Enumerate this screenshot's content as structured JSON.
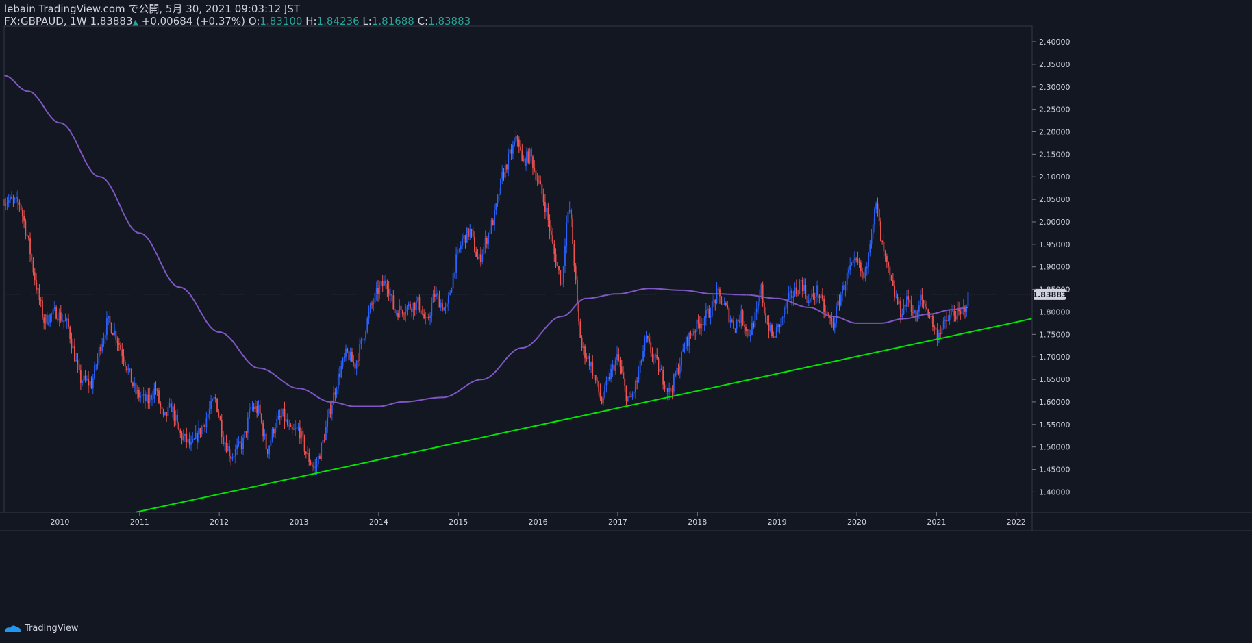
{
  "header": {
    "published_line": "lebain TradingView.com で公開, 5月 30, 2021 09:03:12 JST",
    "symbol": "FX:GBPAUD, 1W",
    "last": "1.83883",
    "change": "+0.00684 (+0.37%)",
    "o_label": "O:",
    "o_value": "1.83100",
    "h_label": "H:",
    "h_value": "1.84236",
    "l_label": "L:",
    "l_value": "1.81688",
    "c_label": "C:",
    "c_value": "1.83883"
  },
  "footer": {
    "brand": "TradingView"
  },
  "colors": {
    "background": "#131722",
    "up": "#2962ff",
    "down": "#ef5350",
    "ma": "#7e57c2",
    "trendline": "#00e600",
    "axis_text": "#d1d4dc",
    "price_tag_bg": "#d1d4dc"
  },
  "chart_data": {
    "type": "candlestick",
    "timeframe": "1W",
    "ylim": [
      1.355,
      2.435
    ],
    "xlim": [
      2009.3,
      2022.2
    ],
    "y_ticks": [
      "1.40000",
      "1.45000",
      "1.50000",
      "1.55000",
      "1.60000",
      "1.65000",
      "1.70000",
      "1.75000",
      "1.80000",
      "1.85000",
      "1.90000",
      "1.95000",
      "2.00000",
      "2.05000",
      "2.10000",
      "2.15000",
      "2.20000",
      "2.25000",
      "2.30000",
      "2.35000",
      "2.40000"
    ],
    "x_ticks": [
      "2010",
      "2011",
      "2012",
      "2013",
      "2014",
      "2015",
      "2016",
      "2017",
      "2018",
      "2019",
      "2020",
      "2021",
      "2022"
    ],
    "current_price": 1.83883,
    "current_price_label": "1.83883",
    "price_path": [
      [
        2009.3,
        2.05
      ],
      [
        2009.5,
        2.04
      ],
      [
        2009.6,
        1.96
      ],
      [
        2009.7,
        1.86
      ],
      [
        2009.8,
        1.78
      ],
      [
        2009.95,
        1.8
      ],
      [
        2010.1,
        1.77
      ],
      [
        2010.25,
        1.65
      ],
      [
        2010.4,
        1.64
      ],
      [
        2010.5,
        1.72
      ],
      [
        2010.6,
        1.78
      ],
      [
        2010.7,
        1.75
      ],
      [
        2010.8,
        1.7
      ],
      [
        2010.95,
        1.62
      ],
      [
        2011.1,
        1.6
      ],
      [
        2011.2,
        1.63
      ],
      [
        2011.3,
        1.56
      ],
      [
        2011.4,
        1.59
      ],
      [
        2011.5,
        1.53
      ],
      [
        2011.65,
        1.5
      ],
      [
        2011.8,
        1.55
      ],
      [
        2011.95,
        1.61
      ],
      [
        2012.05,
        1.52
      ],
      [
        2012.15,
        1.48
      ],
      [
        2012.3,
        1.51
      ],
      [
        2012.4,
        1.59
      ],
      [
        2012.5,
        1.58
      ],
      [
        2012.6,
        1.49
      ],
      [
        2012.7,
        1.55
      ],
      [
        2012.8,
        1.57
      ],
      [
        2012.9,
        1.53
      ],
      [
        2013.0,
        1.54
      ],
      [
        2013.1,
        1.48
      ],
      [
        2013.2,
        1.45
      ],
      [
        2013.3,
        1.51
      ],
      [
        2013.4,
        1.59
      ],
      [
        2013.5,
        1.66
      ],
      [
        2013.6,
        1.71
      ],
      [
        2013.7,
        1.68
      ],
      [
        2013.8,
        1.74
      ],
      [
        2013.9,
        1.81
      ],
      [
        2014.0,
        1.85
      ],
      [
        2014.1,
        1.87
      ],
      [
        2014.2,
        1.8
      ],
      [
        2014.35,
        1.81
      ],
      [
        2014.5,
        1.82
      ],
      [
        2014.6,
        1.77
      ],
      [
        2014.7,
        1.84
      ],
      [
        2014.85,
        1.8
      ],
      [
        2014.95,
        1.9
      ],
      [
        2015.05,
        1.96
      ],
      [
        2015.15,
        1.98
      ],
      [
        2015.25,
        1.91
      ],
      [
        2015.35,
        1.96
      ],
      [
        2015.45,
        2.01
      ],
      [
        2015.55,
        2.1
      ],
      [
        2015.65,
        2.15
      ],
      [
        2015.75,
        2.19
      ],
      [
        2015.8,
        2.13
      ],
      [
        2015.9,
        2.15
      ],
      [
        2016.0,
        2.09
      ],
      [
        2016.1,
        2.03
      ],
      [
        2016.2,
        1.93
      ],
      [
        2016.3,
        1.86
      ],
      [
        2016.35,
        1.99
      ],
      [
        2016.4,
        2.03
      ],
      [
        2016.45,
        1.92
      ],
      [
        2016.5,
        1.79
      ],
      [
        2016.55,
        1.72
      ],
      [
        2016.65,
        1.69
      ],
      [
        2016.75,
        1.63
      ],
      [
        2016.8,
        1.6
      ],
      [
        2016.9,
        1.66
      ],
      [
        2017.0,
        1.7
      ],
      [
        2017.1,
        1.62
      ],
      [
        2017.15,
        1.6
      ],
      [
        2017.25,
        1.65
      ],
      [
        2017.35,
        1.74
      ],
      [
        2017.45,
        1.7
      ],
      [
        2017.55,
        1.66
      ],
      [
        2017.65,
        1.62
      ],
      [
        2017.75,
        1.67
      ],
      [
        2017.85,
        1.73
      ],
      [
        2017.95,
        1.76
      ],
      [
        2018.05,
        1.78
      ],
      [
        2018.15,
        1.8
      ],
      [
        2018.25,
        1.84
      ],
      [
        2018.35,
        1.81
      ],
      [
        2018.45,
        1.77
      ],
      [
        2018.55,
        1.79
      ],
      [
        2018.65,
        1.75
      ],
      [
        2018.75,
        1.8
      ],
      [
        2018.8,
        1.85
      ],
      [
        2018.85,
        1.79
      ],
      [
        2018.95,
        1.74
      ],
      [
        2019.05,
        1.78
      ],
      [
        2019.15,
        1.83
      ],
      [
        2019.25,
        1.85
      ],
      [
        2019.3,
        1.87
      ],
      [
        2019.4,
        1.82
      ],
      [
        2019.5,
        1.85
      ],
      [
        2019.6,
        1.8
      ],
      [
        2019.7,
        1.77
      ],
      [
        2019.8,
        1.84
      ],
      [
        2019.9,
        1.89
      ],
      [
        2020.0,
        1.91
      ],
      [
        2020.1,
        1.87
      ],
      [
        2020.15,
        1.95
      ],
      [
        2020.2,
        2.0
      ],
      [
        2020.25,
        2.04
      ],
      [
        2020.3,
        1.96
      ],
      [
        2020.35,
        1.92
      ],
      [
        2020.45,
        1.85
      ],
      [
        2020.55,
        1.8
      ],
      [
        2020.65,
        1.83
      ],
      [
        2020.75,
        1.78
      ],
      [
        2020.8,
        1.83
      ],
      [
        2020.9,
        1.8
      ],
      [
        2021.0,
        1.75
      ],
      [
        2021.1,
        1.77
      ],
      [
        2021.2,
        1.8
      ],
      [
        2021.3,
        1.79
      ],
      [
        2021.35,
        1.81
      ],
      [
        2021.41,
        1.83883
      ]
    ],
    "moving_average": [
      [
        2009.3,
        2.325
      ],
      [
        2009.6,
        2.29
      ],
      [
        2010.0,
        2.22
      ],
      [
        2010.5,
        2.1
      ],
      [
        2011.0,
        1.975
      ],
      [
        2011.5,
        1.855
      ],
      [
        2012.0,
        1.755
      ],
      [
        2012.5,
        1.675
      ],
      [
        2013.0,
        1.63
      ],
      [
        2013.4,
        1.6
      ],
      [
        2013.7,
        1.59
      ],
      [
        2014.0,
        1.59
      ],
      [
        2014.3,
        1.6
      ],
      [
        2014.8,
        1.61
      ],
      [
        2015.3,
        1.65
      ],
      [
        2015.8,
        1.72
      ],
      [
        2016.3,
        1.79
      ],
      [
        2016.6,
        1.83
      ],
      [
        2017.0,
        1.84
      ],
      [
        2017.4,
        1.852
      ],
      [
        2017.8,
        1.848
      ],
      [
        2018.2,
        1.84
      ],
      [
        2018.6,
        1.838
      ],
      [
        2019.0,
        1.83
      ],
      [
        2019.4,
        1.81
      ],
      [
        2019.7,
        1.79
      ],
      [
        2020.0,
        1.775
      ],
      [
        2020.3,
        1.775
      ],
      [
        2020.6,
        1.785
      ],
      [
        2020.9,
        1.795
      ],
      [
        2021.2,
        1.805
      ],
      [
        2021.41,
        1.81
      ]
    ],
    "trendline": {
      "from": [
        2010.95,
        1.355
      ],
      "to": [
        2022.2,
        1.785
      ]
    }
  }
}
